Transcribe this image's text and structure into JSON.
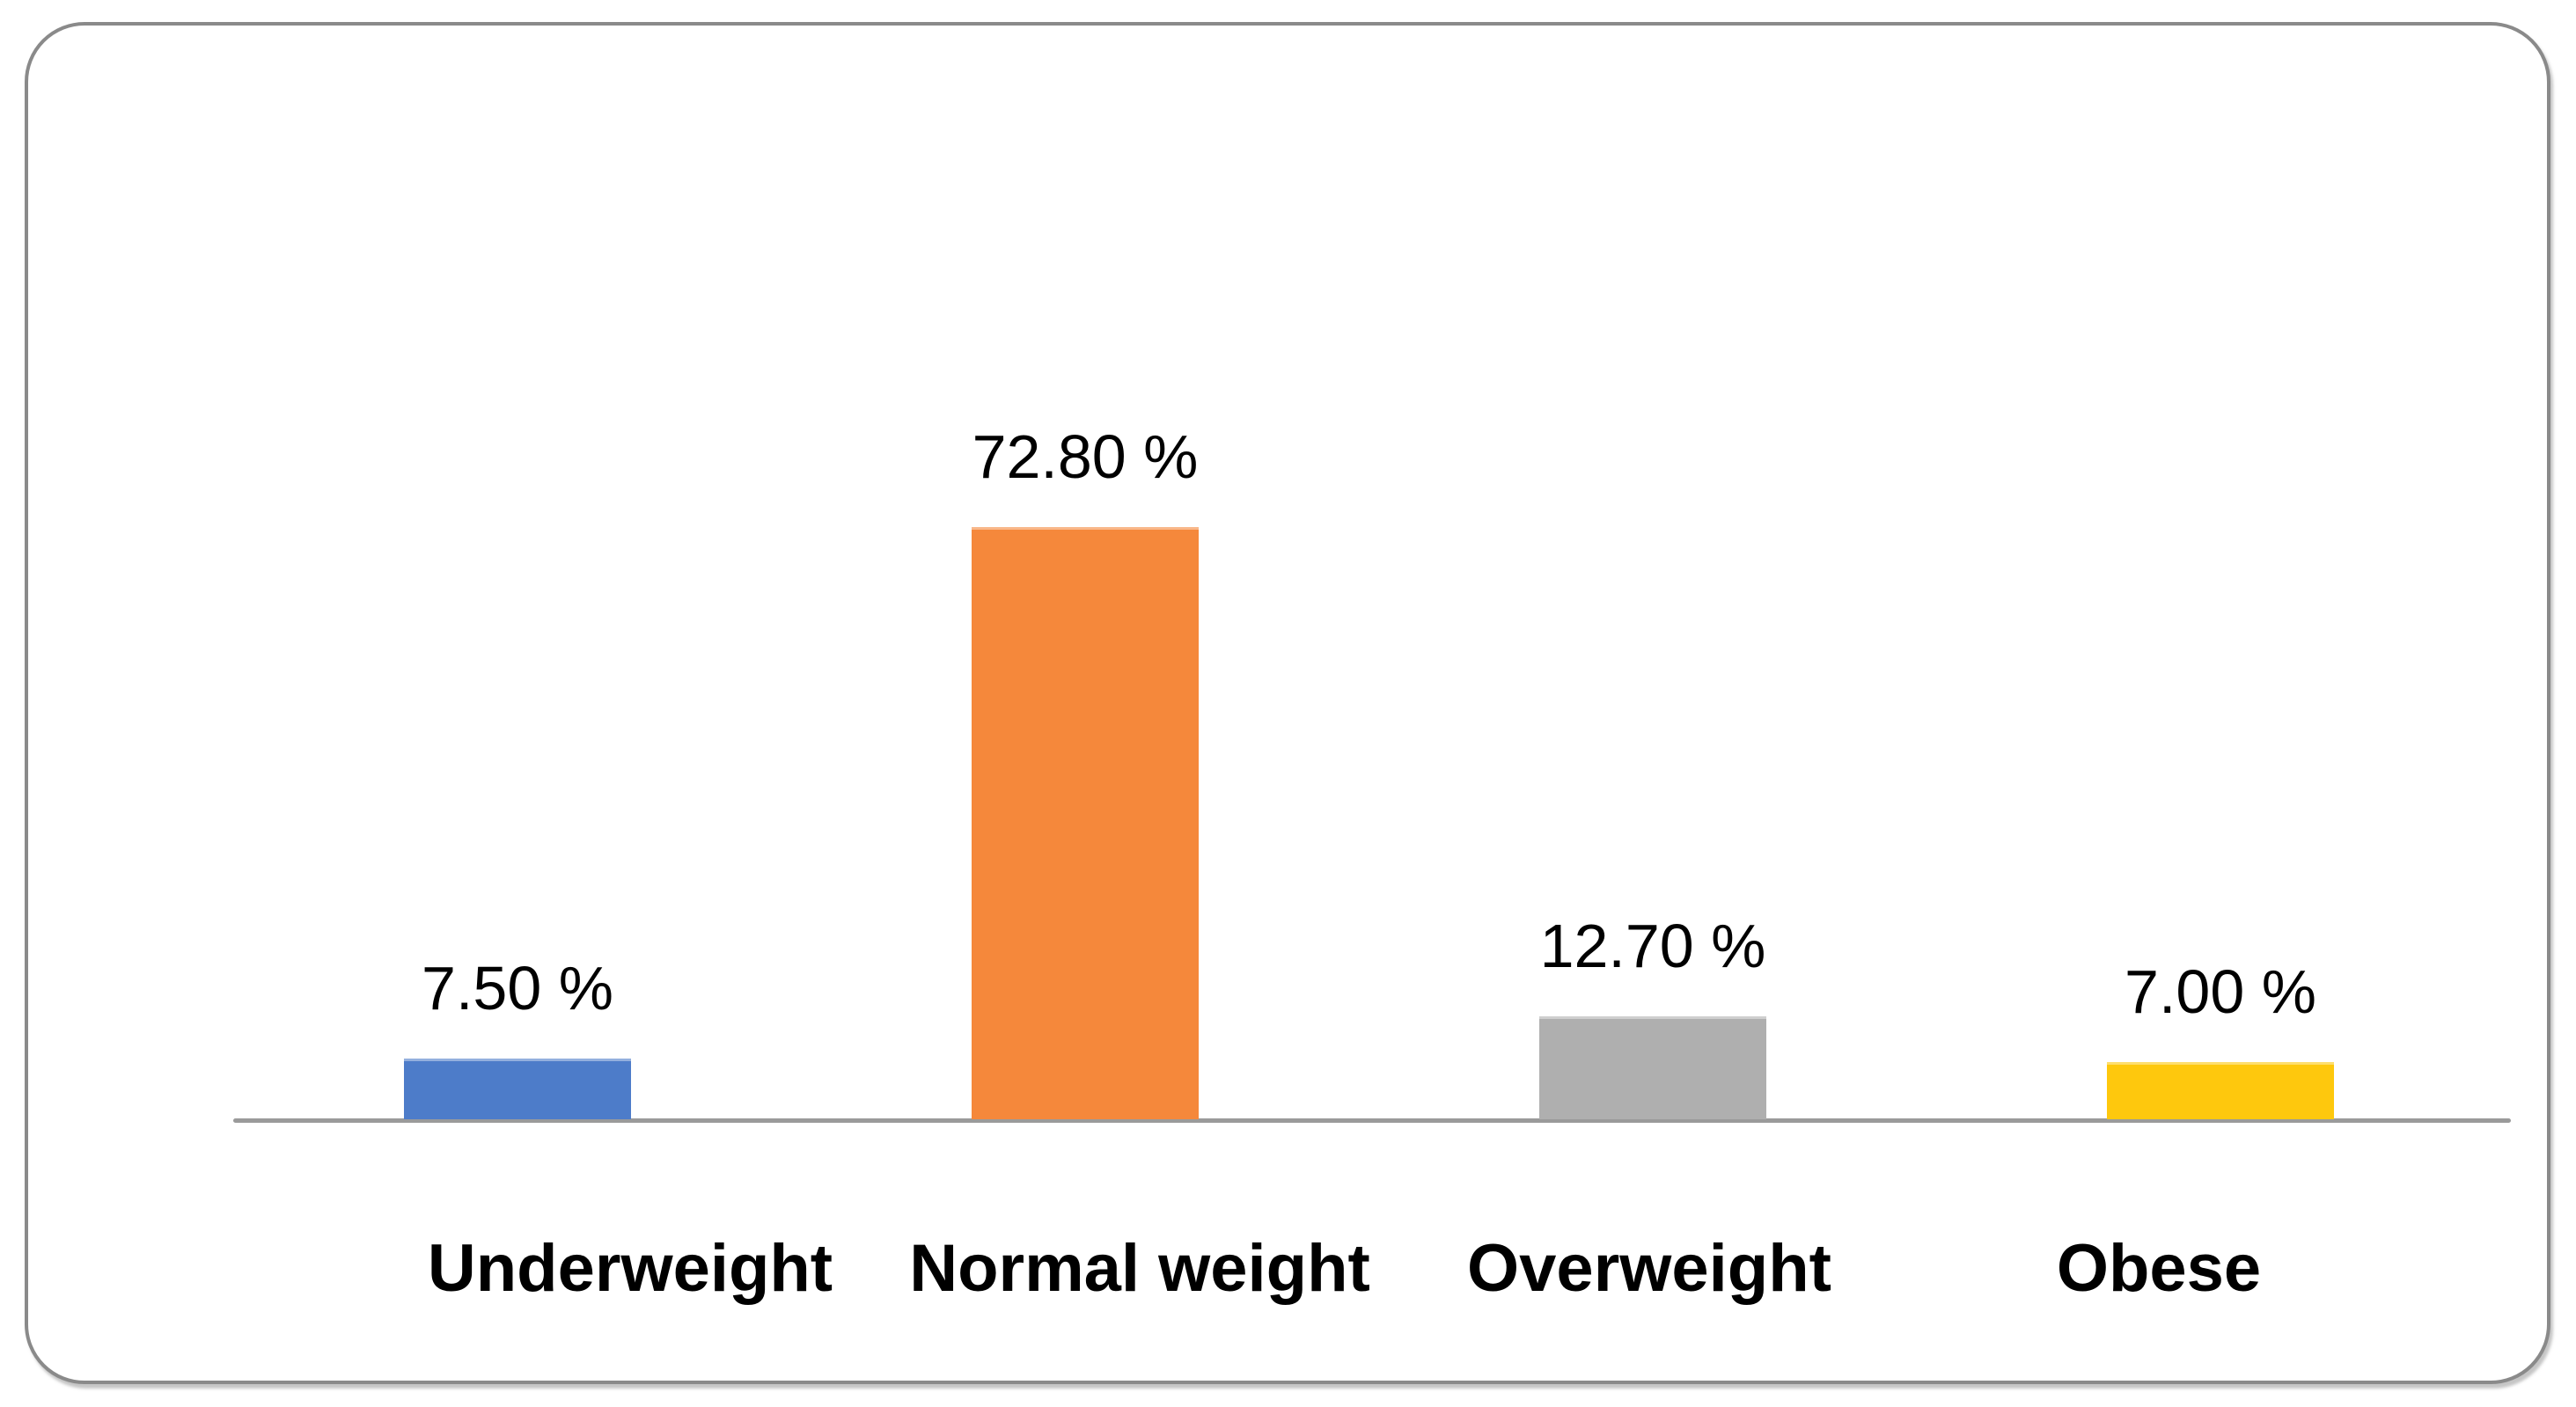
{
  "chart_data": {
    "type": "bar",
    "title": "",
    "xlabel": "",
    "ylabel": "",
    "categories": [
      "Underweight",
      "Normal weight",
      "Overweight",
      "Obese"
    ],
    "values": [
      7.5,
      72.8,
      12.7,
      7.0
    ],
    "value_labels": [
      "7.50 %",
      "72.80 %",
      "12.70 %",
      "7.00 %"
    ],
    "ylim": [
      0,
      80
    ],
    "grid": false,
    "legend": "none",
    "bar_colors": [
      "#4D7CC9",
      "#F5883B",
      "#AFAFAF",
      "#FEC80D"
    ],
    "axis_line_color": "#9A9A9A",
    "frame_border_color": "#8A8A8A",
    "label_color": "#000000"
  }
}
